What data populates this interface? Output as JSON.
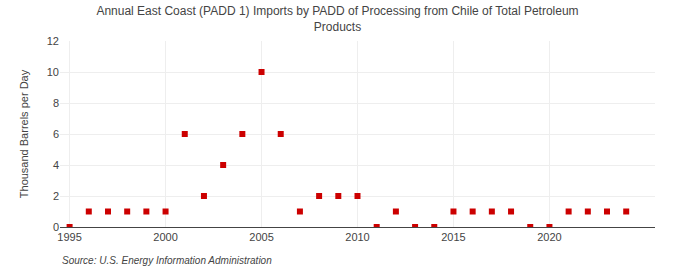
{
  "chart_data": {
    "type": "scatter",
    "title": "Annual East Coast (PADD 1) Imports by PADD of Processing from Chile of Total Petroleum\nProducts",
    "ylabel": "Thousand Barrels per Day",
    "source": "Source: U.S. Energy Information Administration",
    "x": [
      1995,
      1996,
      1997,
      1998,
      1999,
      2000,
      2001,
      2002,
      2003,
      2004,
      2005,
      2006,
      2007,
      2008,
      2009,
      2010,
      2011,
      2012,
      2013,
      2014,
      2015,
      2016,
      2017,
      2018,
      2019,
      2020,
      2021,
      2022,
      2023,
      2024
    ],
    "values": [
      0,
      1,
      1,
      1,
      1,
      1,
      6,
      2,
      4,
      6,
      10,
      6,
      1,
      2,
      2,
      2,
      0,
      1,
      0,
      0,
      1,
      1,
      1,
      1,
      0,
      0,
      1,
      1,
      1,
      1
    ],
    "color": "#cc0000",
    "marker": "square",
    "xlim": [
      1994.5,
      2025.5
    ],
    "xticks": [
      1995,
      2000,
      2005,
      2010,
      2015,
      2020
    ],
    "ylim": [
      0,
      12
    ],
    "yticks": [
      0,
      2,
      4,
      6,
      8,
      10,
      12
    ],
    "grid": true
  }
}
